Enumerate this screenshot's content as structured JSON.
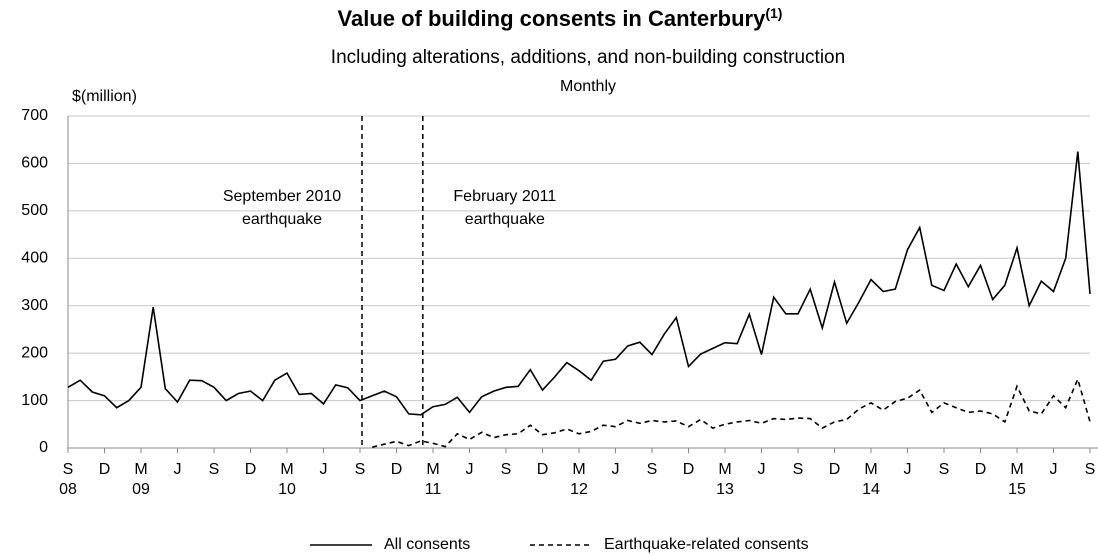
{
  "chart_data": {
    "type": "line",
    "title": "Value of building consents in Canterbury",
    "title_note": "(1)",
    "subtitle": [
      "Including alterations, additions, and non-building construction",
      "Monthly"
    ],
    "y_label": "$(million)",
    "categories": [
      "S",
      null,
      null,
      "D",
      null,
      null,
      "M",
      null,
      null,
      "J",
      null,
      null,
      "S",
      null,
      null,
      "D",
      null,
      null,
      "M",
      null,
      null,
      "J",
      null,
      null,
      "S",
      null,
      null,
      "D",
      null,
      null,
      "M",
      null,
      null,
      "J",
      null,
      null,
      "S",
      null,
      null,
      "D",
      null,
      null,
      "M",
      null,
      null,
      "J",
      null,
      null,
      "S",
      null,
      null,
      "D",
      null,
      null,
      "M",
      null,
      null,
      "J",
      null,
      null,
      "S",
      null,
      null,
      "D",
      null,
      null,
      "M",
      null,
      null,
      "J",
      null,
      null,
      "S",
      null,
      null,
      "D",
      null,
      null,
      "M",
      null,
      null,
      "J",
      null,
      null,
      "S"
    ],
    "year_labels": [
      "08",
      null,
      null,
      null,
      null,
      null,
      "09",
      null,
      null,
      null,
      null,
      null,
      null,
      null,
      null,
      null,
      null,
      null,
      "10",
      null,
      null,
      null,
      null,
      null,
      null,
      null,
      null,
      null,
      null,
      null,
      "11",
      null,
      null,
      null,
      null,
      null,
      null,
      null,
      null,
      null,
      null,
      null,
      "12",
      null,
      null,
      null,
      null,
      null,
      null,
      null,
      null,
      null,
      null,
      null,
      "13",
      null,
      null,
      null,
      null,
      null,
      null,
      null,
      null,
      null,
      null,
      null,
      "14",
      null,
      null,
      null,
      null,
      null,
      null,
      null,
      null,
      null,
      null,
      null,
      "15",
      null,
      null,
      null,
      null,
      null,
      null
    ],
    "series": [
      {
        "name": "All consents",
        "color": "#000000",
        "dash": false,
        "values": [
          128,
          143,
          118,
          110,
          85,
          100,
          128,
          297,
          125,
          97,
          143,
          142,
          128,
          100,
          115,
          120,
          100,
          143,
          158,
          113,
          115,
          93,
          133,
          127,
          100,
          110,
          120,
          108,
          72,
          70,
          87,
          92,
          107,
          75,
          108,
          120,
          128,
          130,
          165,
          122,
          150,
          180,
          163,
          143,
          183,
          187,
          215,
          223,
          197,
          240,
          275,
          172,
          198,
          210,
          222,
          220,
          282,
          197,
          318,
          283,
          283,
          335,
          253,
          350,
          263,
          307,
          355,
          330,
          335,
          418,
          465,
          343,
          332,
          388,
          340,
          385,
          313,
          343,
          422,
          300,
          352,
          330,
          400,
          625,
          325
        ]
      },
      {
        "name": "Earthquake-related consents",
        "color": "#000000",
        "dash": true,
        "values": [
          null,
          null,
          null,
          null,
          null,
          null,
          null,
          null,
          null,
          null,
          null,
          null,
          null,
          null,
          null,
          null,
          null,
          null,
          null,
          null,
          null,
          null,
          null,
          null,
          null,
          2,
          8,
          14,
          5,
          15,
          10,
          3,
          30,
          18,
          33,
          22,
          28,
          30,
          48,
          28,
          32,
          40,
          30,
          35,
          48,
          45,
          58,
          52,
          58,
          55,
          57,
          45,
          60,
          42,
          50,
          55,
          58,
          52,
          62,
          60,
          63,
          62,
          42,
          55,
          60,
          82,
          95,
          80,
          98,
          105,
          122,
          75,
          95,
          85,
          75,
          78,
          72,
          55,
          130,
          78,
          72,
          110,
          85,
          145,
          55
        ]
      }
    ],
    "events": [
      {
        "label": [
          "September 2010",
          "earthquake"
        ],
        "category_index": 24
      },
      {
        "label": [
          "February 2011",
          "earthquake"
        ],
        "category_index": 29
      }
    ],
    "ylim": [
      0,
      700
    ],
    "yticks": [
      0,
      100,
      200,
      300,
      400,
      500,
      600,
      700
    ],
    "grid": true,
    "legend": "bottom"
  }
}
